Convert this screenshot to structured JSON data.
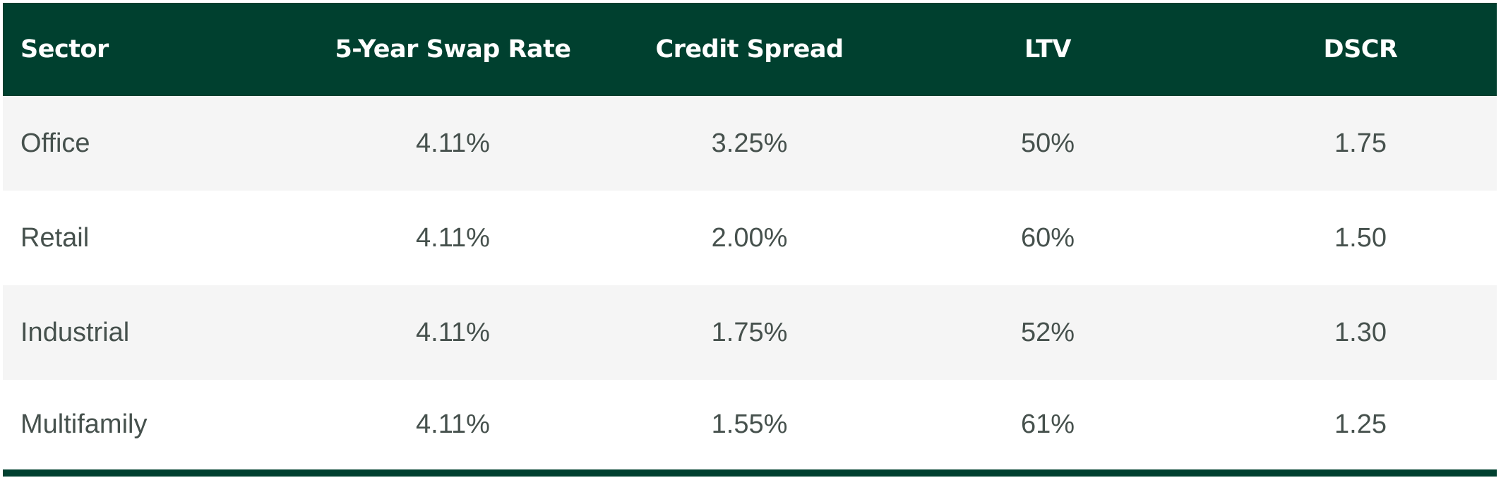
{
  "colors": {
    "header_bg": "#00402f",
    "header_text": "#ffffff",
    "row_alt_bg": "#f5f5f5",
    "row_bg": "#ffffff",
    "body_text": "#46514d",
    "bottom_rule": "#00402f"
  },
  "table": {
    "headers": {
      "sector": "Sector",
      "swap_rate": "5-Year Swap Rate",
      "credit_spread": "Credit Spread",
      "ltv": "LTV",
      "dscr": "DSCR"
    },
    "rows": [
      {
        "sector": "Office",
        "swap_rate": "4.11%",
        "credit_spread": "3.25%",
        "ltv": "50%",
        "dscr": "1.75"
      },
      {
        "sector": "Retail",
        "swap_rate": "4.11%",
        "credit_spread": "2.00%",
        "ltv": "60%",
        "dscr": "1.50"
      },
      {
        "sector": "Industrial",
        "swap_rate": "4.11%",
        "credit_spread": "1.75%",
        "ltv": "52%",
        "dscr": "1.30"
      },
      {
        "sector": "Multifamily",
        "swap_rate": "4.11%",
        "credit_spread": "1.55%",
        "ltv": "61%",
        "dscr": "1.25"
      }
    ]
  }
}
